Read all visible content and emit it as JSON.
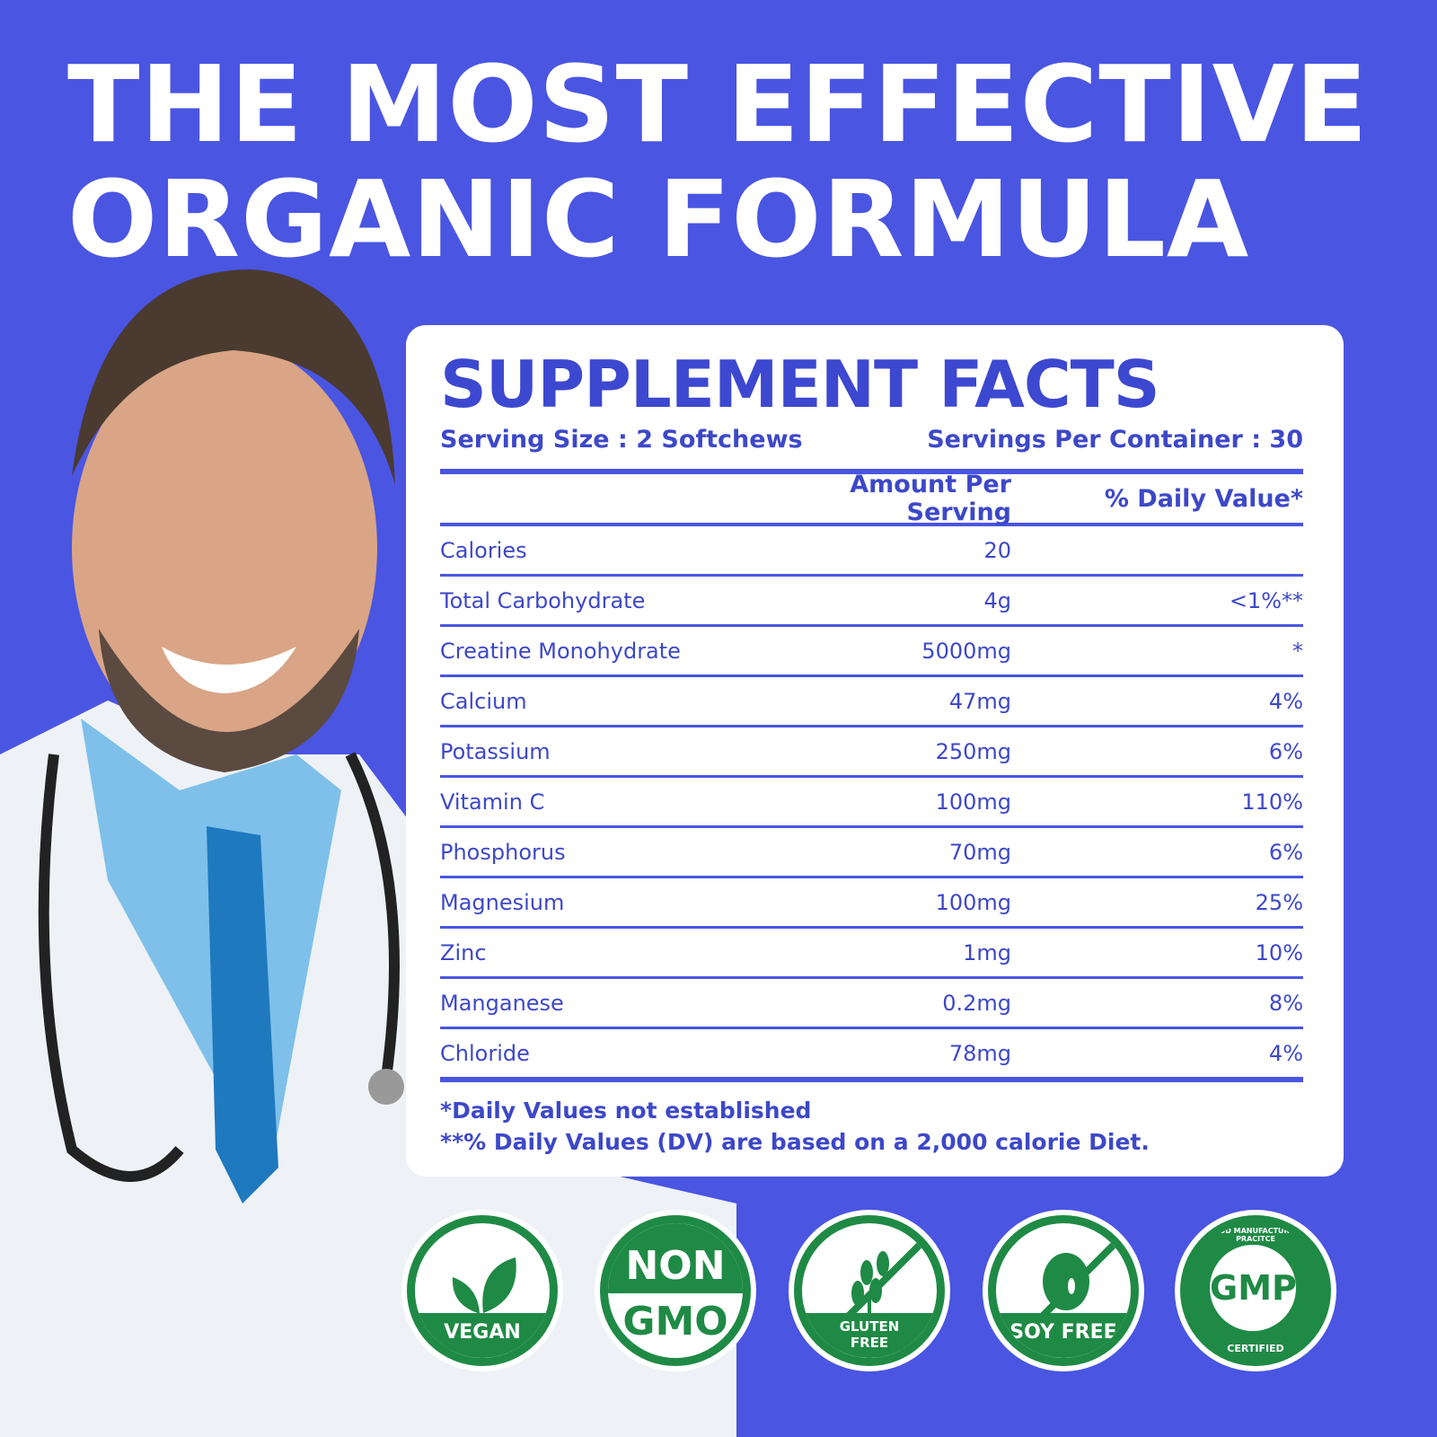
{
  "headline": {
    "line1": "THE MOST EFFECTIVE",
    "line2": "ORGANIC FORMULA"
  },
  "facts": {
    "title": "SUPPLEMENT FACTS",
    "serving_size": "Serving Size : 2 Softchews",
    "servings_per_container": "Servings Per Container : 30",
    "col_amount": "Amount Per Serving",
    "col_dv": "% Daily Value*",
    "rows": [
      {
        "name": "Calories",
        "amount": "20",
        "dv": ""
      },
      {
        "name": "Total Carbohydrate",
        "amount": "4g",
        "dv": "<1%**"
      },
      {
        "name": "Creatine Monohydrate",
        "amount": "5000mg",
        "dv": "*"
      },
      {
        "name": "Calcium",
        "amount": "47mg",
        "dv": "4%"
      },
      {
        "name": "Potassium",
        "amount": "250mg",
        "dv": "6%"
      },
      {
        "name": "Vitamin C",
        "amount": "100mg",
        "dv": "110%"
      },
      {
        "name": "Phosphorus",
        "amount": "70mg",
        "dv": "6%"
      },
      {
        "name": "Magnesium",
        "amount": "100mg",
        "dv": "25%"
      },
      {
        "name": "Zinc",
        "amount": "1mg",
        "dv": "10%"
      },
      {
        "name": "Manganese",
        "amount": "0.2mg",
        "dv": "8%"
      },
      {
        "name": "Chloride",
        "amount": "78mg",
        "dv": "4%"
      }
    ],
    "footnote1": "*Daily Values not established",
    "footnote2": "**% Daily Values (DV) are based on a 2,000 calorie Diet."
  },
  "badges": {
    "vegan": "VEGAN",
    "non": "NON",
    "gmo": "GMO",
    "gluten": "GLUTEN",
    "free": "FREE",
    "soy": "SOY FREE",
    "gmp": "GMP",
    "gmp_ring": "GOOD MANUFACTURING PRACITCE",
    "certified": "CERTIFIED"
  },
  "colors": {
    "background": "#4a55e2",
    "text": "#3d48c8",
    "badge_green": "#1f8a45"
  }
}
